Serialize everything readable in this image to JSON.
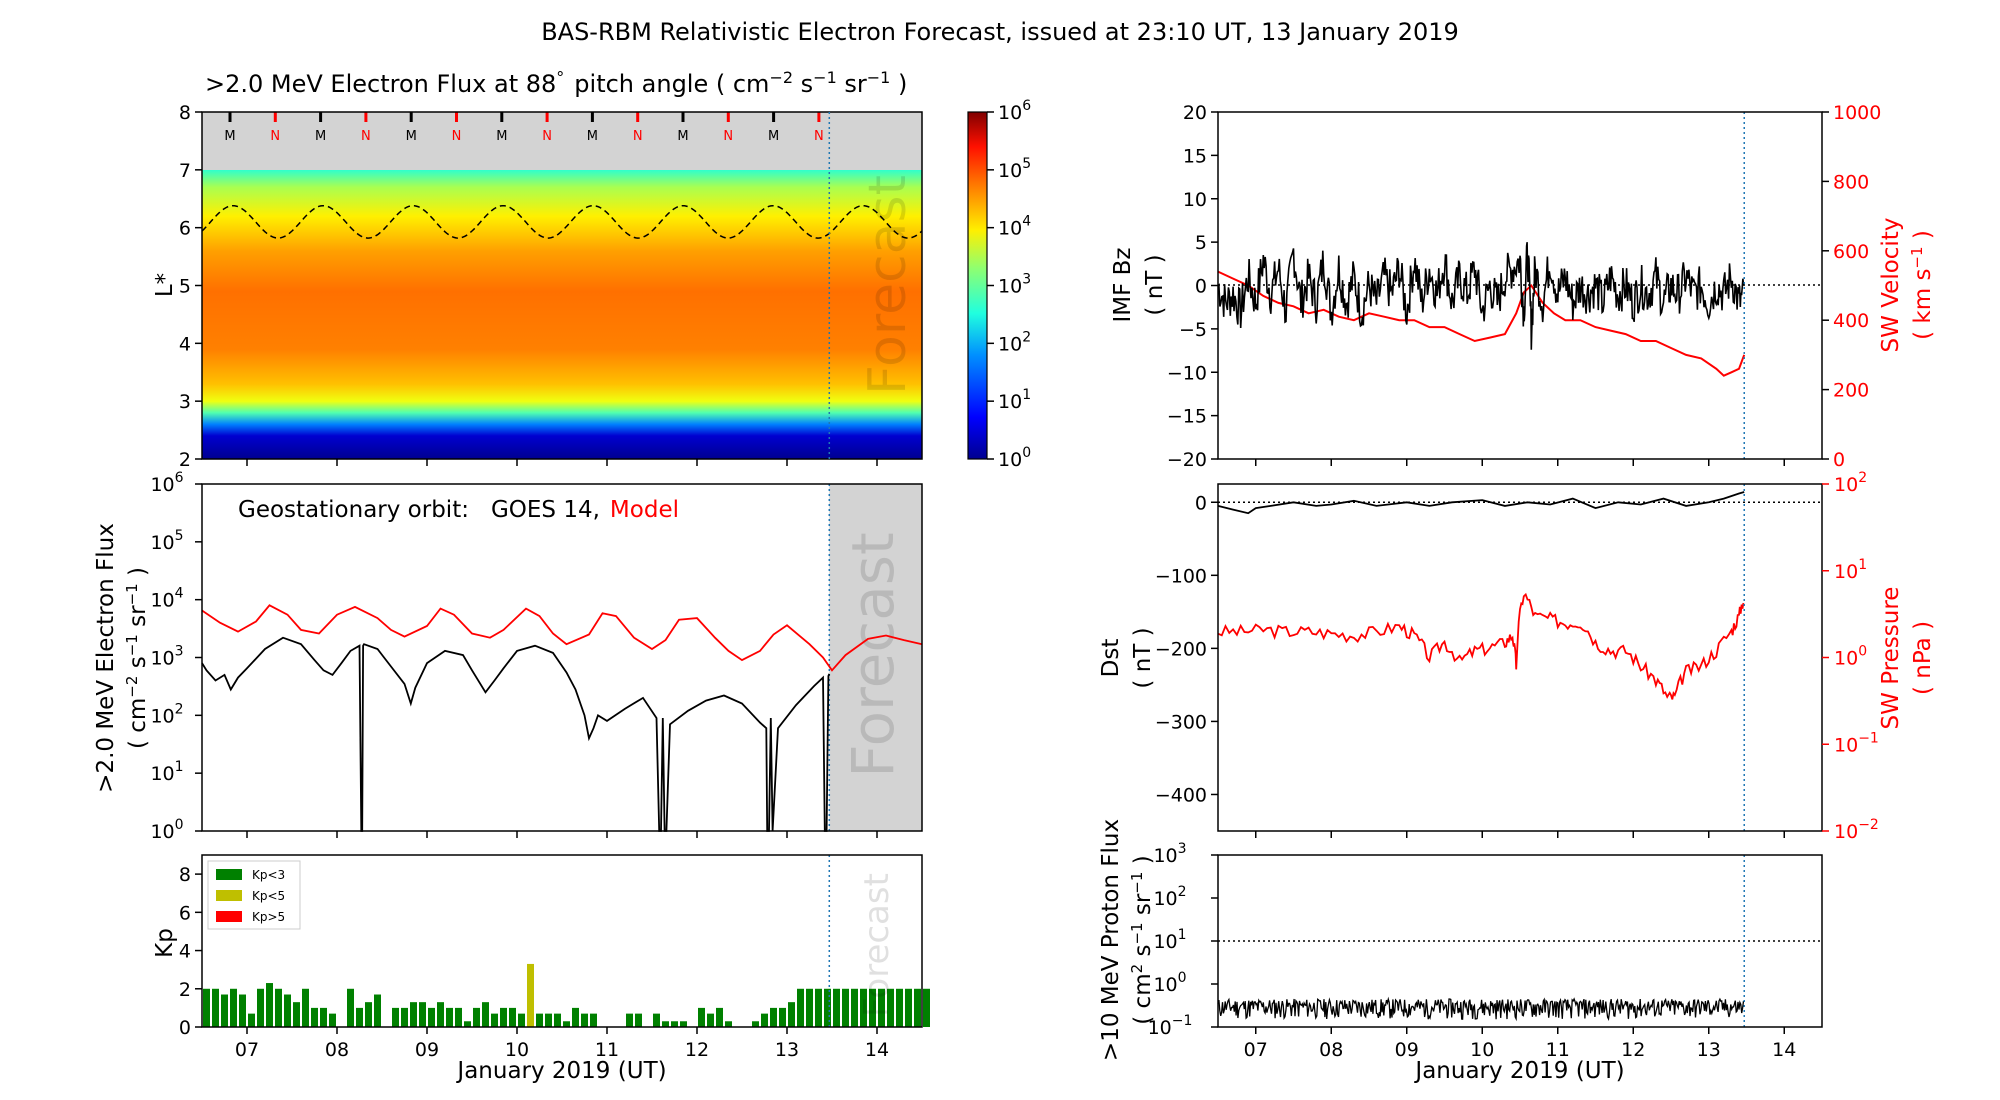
{
  "title": "BAS-RBM Relativistic Electron Forecast, issued at 23:10 UT, 13 January 2019",
  "colors": {
    "model": "#ff0000",
    "observed": "#000000",
    "forecast_shade": "#d3d3d3",
    "kp_green": "#008000",
    "kp_yellow": "#bfbf00",
    "kp_red": "#ff0000",
    "forecast_line": "#1f77b4"
  },
  "x_axis": {
    "label": "January 2019 (UT)",
    "ticks": [
      "07",
      "08",
      "09",
      "10",
      "11",
      "12",
      "13",
      "14"
    ],
    "start_day": 6.5,
    "end_day": 14.5,
    "forecast_start": 13.47
  },
  "chart_data": [
    {
      "id": "lstar_heatmap",
      "type": "heatmap",
      "title_prefix": ">2.0 MeV Electron Flux at 88",
      "title_deg": "°",
      "title_units_prefix": "pitch angle ( cm",
      "title_exp1": "−2",
      "title_s": " s",
      "title_exp2": "−1",
      "title_sr": " sr",
      "title_exp3": "−1",
      "title_close": " )",
      "ylabel": "L*",
      "ylim": [
        2,
        8
      ],
      "yticks": [
        "2",
        "3",
        "4",
        "5",
        "6",
        "7",
        "8"
      ],
      "colorbar": {
        "scale": "log",
        "range": [
          1,
          1000000
        ],
        "ticks": [
          "10",
          "10",
          "10",
          "10",
          "10",
          "10",
          "10"
        ],
        "exps": [
          "0",
          "1",
          "2",
          "3",
          "4",
          "5",
          "6"
        ]
      },
      "no_data_band": [
        7,
        8
      ],
      "mn_markers": [
        "M",
        "N",
        "M",
        "N",
        "M",
        "N",
        "M",
        "N",
        "M",
        "N",
        "M",
        "N",
        "M",
        "N"
      ],
      "forecast_label": "Forecast"
    },
    {
      "id": "geo_flux",
      "type": "line",
      "scale": "log",
      "ylim": [
        1,
        1000000
      ],
      "yticks_base": [
        "10",
        "10",
        "10",
        "10",
        "10",
        "10",
        "10"
      ],
      "yticks_exp": [
        "0",
        "1",
        "2",
        "3",
        "4",
        "5",
        "6"
      ],
      "ylabel_line1": ">2.0 MeV Electron Flux",
      "ylabel_line2_parts": [
        "( cm",
        "−2",
        " s",
        "−1",
        " sr",
        "−1",
        " )"
      ],
      "legend_prefix": "Geostationary orbit:",
      "legend_obs": "GOES 14,",
      "legend_model": "Model",
      "forecast_label": "Forecast",
      "series": [
        {
          "name": "Model",
          "x": [
            6.5,
            6.7,
            6.9,
            7.1,
            7.25,
            7.45,
            7.6,
            7.8,
            8.0,
            8.2,
            8.45,
            8.6,
            8.75,
            9.0,
            9.15,
            9.3,
            9.5,
            9.7,
            9.85,
            10.1,
            10.25,
            10.4,
            10.55,
            10.8,
            10.95,
            11.1,
            11.3,
            11.5,
            11.65,
            11.8,
            12.0,
            12.2,
            12.35,
            12.5,
            12.7,
            12.85,
            13.0,
            13.25,
            13.4,
            13.5,
            13.65,
            13.9,
            14.1,
            14.3,
            14.5
          ],
          "y": [
            6500,
            4000,
            2800,
            4200,
            8000,
            5500,
            3000,
            2600,
            5500,
            7500,
            4800,
            3000,
            2300,
            3500,
            7000,
            5500,
            2600,
            2200,
            3000,
            7000,
            5200,
            2600,
            1700,
            2500,
            5800,
            5200,
            2200,
            1400,
            2000,
            4500,
            4800,
            2200,
            1300,
            900,
            1300,
            2500,
            3600,
            1700,
            1000,
            600,
            1100,
            2100,
            2400,
            2000,
            1700
          ]
        },
        {
          "name": "GOES 14",
          "x": [
            6.5,
            6.55,
            6.65,
            6.75,
            6.82,
            6.9,
            7.0,
            7.2,
            7.4,
            7.6,
            7.75,
            7.85,
            7.95,
            8.05,
            8.15,
            8.25,
            8.27,
            8.28,
            8.29,
            8.3,
            8.45,
            8.6,
            8.75,
            8.82,
            8.87,
            9.0,
            9.2,
            9.4,
            9.5,
            9.65,
            9.75,
            9.85,
            10.0,
            10.2,
            10.4,
            10.55,
            10.65,
            10.75,
            10.8,
            10.85,
            10.9,
            11.0,
            11.2,
            11.4,
            11.55,
            11.58,
            11.6,
            11.62,
            11.64,
            11.66,
            11.7,
            11.9,
            12.1,
            12.3,
            12.5,
            12.7,
            12.77,
            12.78,
            12.8,
            12.82,
            12.84,
            12.9,
            13.1,
            13.3,
            13.4,
            13.42,
            13.44,
            13.46,
            13.47
          ],
          "y": [
            800,
            600,
            400,
            500,
            280,
            450,
            650,
            1400,
            2200,
            1700,
            900,
            600,
            500,
            800,
            1300,
            1600,
            1,
            1,
            1600,
            1700,
            1400,
            700,
            350,
            160,
            300,
            800,
            1300,
            1100,
            600,
            250,
            400,
            650,
            1300,
            1600,
            1200,
            550,
            280,
            100,
            40,
            60,
            100,
            80,
            130,
            200,
            90,
            1,
            1,
            90,
            1,
            1,
            70,
            120,
            180,
            220,
            160,
            75,
            60,
            1,
            1,
            90,
            1,
            60,
            150,
            320,
            450,
            1,
            1,
            480,
            520
          ]
        }
      ]
    },
    {
      "id": "kp",
      "type": "bar",
      "ylabel": "Kp",
      "ylim": [
        0,
        9
      ],
      "yticks": [
        "0",
        "2",
        "4",
        "6",
        "8"
      ],
      "bar_width_days": 0.1,
      "legend": [
        {
          "name": "Kp<3",
          "color": "#008000"
        },
        {
          "name": "Kp<5",
          "color": "#bfbf00"
        },
        {
          "name": "Kp>5",
          "color": "#ff0000"
        }
      ],
      "forecast_label": "Forecast",
      "values": [
        2,
        2,
        1.7,
        2,
        1.7,
        0.7,
        2,
        2.3,
        2,
        1.7,
        1.3,
        2,
        1,
        1,
        0.7,
        0,
        2,
        1,
        1.3,
        1.7,
        0,
        1,
        1,
        1.3,
        1.3,
        1,
        1.3,
        1,
        1,
        0.3,
        1,
        1.3,
        0.7,
        1,
        1,
        0.7,
        3.3,
        0.7,
        0.7,
        0.7,
        0.3,
        1,
        0.7,
        0.7,
        0,
        0,
        0,
        0.7,
        0.7,
        0,
        0.7,
        0.3,
        0.3,
        0.3,
        0,
        1,
        0.7,
        1,
        0.3,
        0,
        0,
        0.3,
        0.7,
        1,
        1,
        1.3,
        2,
        2,
        2,
        2,
        2,
        2,
        2,
        2,
        2,
        2,
        2,
        2,
        2,
        2,
        2
      ]
    },
    {
      "id": "imf_bz_vsw",
      "type": "line",
      "ylabel_left_line1": "IMF Bz",
      "ylabel_left_line2": "( nT )",
      "ylim_left": [
        -20,
        20
      ],
      "yticks_left": [
        "−20",
        "−15",
        "−10",
        "−5",
        "0",
        "5",
        "10",
        "15",
        "20"
      ],
      "ylabel_right_line1": "SW Velocity",
      "ylabel_right_parts": [
        "( km s",
        "−1",
        " )"
      ],
      "ylim_right": [
        0,
        1000
      ],
      "yticks_right": [
        "0",
        "200",
        "400",
        "600",
        "800",
        "1000"
      ],
      "series": [
        {
          "name": "IMF Bz",
          "x": [
            6.5,
            6.6,
            6.7,
            6.8,
            6.9,
            7.0,
            7.1,
            7.2,
            7.3,
            7.4,
            7.5,
            7.6,
            7.7,
            7.8,
            7.9,
            8.0,
            8.1,
            8.2,
            8.3,
            8.4,
            8.5,
            8.6,
            8.7,
            8.8,
            8.9,
            9.0,
            9.1,
            9.2,
            9.3,
            9.4,
            9.5,
            9.6,
            9.7,
            9.8,
            9.9,
            10.0,
            10.1,
            10.2,
            10.3,
            10.4,
            10.5,
            10.55,
            10.6,
            10.65,
            10.7,
            10.8,
            10.9,
            11.0,
            11.1,
            11.2,
            11.3,
            11.4,
            11.5,
            11.6,
            11.7,
            11.8,
            11.9,
            12.0,
            12.1,
            12.2,
            12.3,
            12.4,
            12.5,
            12.6,
            12.7,
            12.8,
            12.9,
            13.0,
            13.1,
            13.2,
            13.3,
            13.4,
            13.47
          ],
          "y": [
            0,
            -2,
            -1,
            -3,
            1,
            -2,
            3,
            -1,
            2,
            -3,
            4,
            -2,
            1,
            -2,
            3,
            -3,
            2,
            -2,
            1,
            -3,
            0,
            -2,
            1,
            -1,
            2,
            -3,
            3,
            -2,
            2,
            -1,
            3,
            -2,
            1,
            -1,
            2,
            -3,
            0,
            -2,
            1,
            2,
            3,
            -3,
            4,
            -5,
            2,
            -2,
            3,
            -1,
            1,
            -2,
            0,
            -1,
            0,
            -2,
            1,
            -1,
            0,
            -2,
            0,
            -1,
            1,
            -2,
            0,
            -1,
            1,
            -1,
            0,
            -2,
            0,
            -1,
            1,
            -2,
            -1
          ]
        },
        {
          "name": "SW Velocity",
          "x": [
            6.5,
            6.7,
            6.9,
            7.1,
            7.3,
            7.5,
            7.7,
            7.9,
            8.1,
            8.3,
            8.5,
            8.7,
            8.9,
            9.1,
            9.3,
            9.5,
            9.7,
            9.9,
            10.1,
            10.3,
            10.45,
            10.55,
            10.65,
            10.8,
            10.95,
            11.1,
            11.3,
            11.5,
            11.7,
            11.9,
            12.1,
            12.3,
            12.5,
            12.7,
            12.9,
            13.1,
            13.2,
            13.3,
            13.4,
            13.47
          ],
          "y": [
            540,
            520,
            500,
            470,
            450,
            440,
            420,
            430,
            410,
            400,
            420,
            410,
            400,
            400,
            380,
            380,
            360,
            340,
            350,
            360,
            420,
            480,
            500,
            450,
            420,
            400,
            400,
            380,
            370,
            360,
            340,
            340,
            320,
            300,
            290,
            260,
            240,
            250,
            260,
            300
          ]
        }
      ]
    },
    {
      "id": "dst_psw",
      "type": "line",
      "ylabel_left_line1": "Dst",
      "ylabel_left_line2": "( nT )",
      "ylim_left": [
        -450,
        25
      ],
      "yticks_left": [
        "−400",
        "−300",
        "−200",
        "−100",
        "0"
      ],
      "ylabel_right_line1": "SW Pressure",
      "ylabel_right_line2": "( nPa )",
      "ylim_right": [
        0.01,
        100
      ],
      "yticks_right_base": [
        "10",
        "10",
        "10",
        "10",
        "10"
      ],
      "yticks_right_exp": [
        "−2",
        "−1",
        "0",
        "1",
        "2"
      ],
      "series": [
        {
          "name": "Dst",
          "x": [
            6.5,
            6.7,
            6.9,
            7.0,
            7.2,
            7.5,
            7.8,
            8.0,
            8.3,
            8.6,
            9.0,
            9.3,
            9.6,
            10.0,
            10.3,
            10.6,
            10.9,
            11.2,
            11.5,
            11.8,
            12.1,
            12.4,
            12.7,
            13.0,
            13.2,
            13.4,
            13.47
          ],
          "y": [
            -5,
            -10,
            -15,
            -8,
            -5,
            0,
            -5,
            -3,
            2,
            -5,
            0,
            -5,
            0,
            3,
            -5,
            0,
            -3,
            5,
            -8,
            0,
            -3,
            5,
            -5,
            0,
            5,
            12,
            14
          ]
        },
        {
          "name": "SW Pressure",
          "x": [
            6.5,
            6.8,
            7.1,
            7.4,
            7.7,
            8.0,
            8.3,
            8.6,
            8.9,
            9.1,
            9.3,
            9.5,
            9.7,
            9.9,
            10.1,
            10.3,
            10.4,
            10.45,
            10.55,
            10.7,
            10.9,
            11.1,
            11.3,
            11.5,
            11.7,
            11.9,
            12.1,
            12.3,
            12.45,
            12.55,
            12.7,
            12.9,
            13.1,
            13.3,
            13.4,
            13.47
          ],
          "y": [
            2,
            2,
            2.1,
            2,
            2,
            1.9,
            1.8,
            2,
            2.3,
            1.8,
            1,
            1.5,
            0.9,
            1.2,
            1.3,
            1.5,
            1.8,
            0.8,
            5.5,
            3,
            2.8,
            2.5,
            2.6,
            1.5,
            1.2,
            1.2,
            0.8,
            0.55,
            0.35,
            0.35,
            0.7,
            0.8,
            1.2,
            2,
            3,
            5
          ]
        }
      ]
    },
    {
      "id": "proton_flux",
      "type": "line",
      "scale": "log",
      "ylabel_line1": ">10 MeV Proton Flux",
      "ylabel_parts": [
        "( cm",
        "2",
        " s",
        "−1",
        " sr",
        "−1",
        " )"
      ],
      "ylim": [
        0.1,
        1000
      ],
      "yticks_base": [
        "10",
        "10",
        "10",
        "10",
        "10"
      ],
      "yticks_exp": [
        "−1",
        "0",
        "1",
        "2",
        "3"
      ],
      "threshold": 10,
      "series": [
        {
          "name": ">10 MeV Proton Flux",
          "x": [
            6.5,
            13.47
          ],
          "y_low": 0.15,
          "y_high": 0.45
        }
      ]
    }
  ]
}
